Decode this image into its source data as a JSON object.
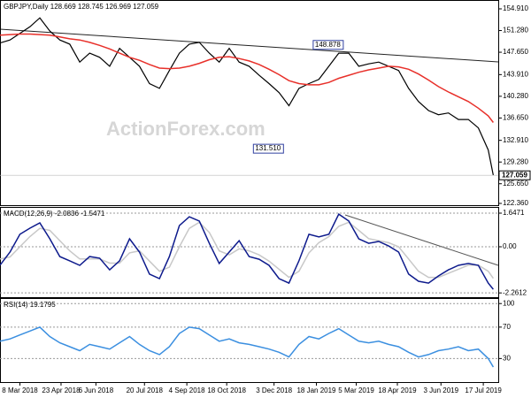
{
  "chart_data": [
    {
      "type": "line",
      "title": "GBPJPY,Daily  128.669 128.745 126.969 127.059",
      "watermark": "ActionForex.com",
      "x": [
        0,
        8,
        16,
        24,
        32,
        40,
        48,
        56,
        64,
        72,
        80,
        88,
        96,
        104,
        112,
        120,
        128,
        136,
        144,
        152,
        160,
        168,
        176,
        184,
        192,
        200,
        208,
        216,
        224,
        232,
        240,
        248,
        256,
        264,
        272,
        280,
        288,
        296,
        304,
        312,
        320,
        328,
        336,
        344,
        352,
        360,
        368,
        376,
        384,
        392,
        396
      ],
      "xlim": [
        0,
        400
      ],
      "ylim": [
        122.06,
        156.39
      ],
      "yticks": [
        {
          "value": 154.91,
          "label": "154.910"
        },
        {
          "value": 151.28,
          "label": "151.280"
        },
        {
          "value": 147.65,
          "label": "147.650"
        },
        {
          "value": 143.91,
          "label": "143.910"
        },
        {
          "value": 140.28,
          "label": "140.280"
        },
        {
          "value": 136.65,
          "label": "136.650"
        },
        {
          "value": 132.91,
          "label": "132.910"
        },
        {
          "value": 129.28,
          "label": "129.280"
        },
        {
          "value": 125.65,
          "label": "125.650"
        },
        {
          "value": 122.36,
          "label": "122.360"
        }
      ],
      "grid": false,
      "series": [
        {
          "color": "#000000",
          "values": [
            149.2,
            149.7,
            150.8,
            151.9,
            153.4,
            151.2,
            149.7,
            149.0,
            146.0,
            147.5,
            146.8,
            145.3,
            148.3,
            146.8,
            145.3,
            142.4,
            141.6,
            144.6,
            147.5,
            149.0,
            149.3,
            147.5,
            146.0,
            148.3,
            146.0,
            145.3,
            143.8,
            142.4,
            140.9,
            138.7,
            141.6,
            142.4,
            143.1,
            145.3,
            147.5,
            147.5,
            145.3,
            145.7,
            146.0,
            145.3,
            144.6,
            141.6,
            139.4,
            137.9,
            137.2,
            137.5,
            136.4,
            136.4,
            135.0,
            131.3,
            127.059
          ]
        },
        {
          "color": "#e8302a",
          "values": [
            150.5,
            150.6,
            150.7,
            150.7,
            150.6,
            150.5,
            150.2,
            149.9,
            149.7,
            149.3,
            148.8,
            148.2,
            147.5,
            146.8,
            146.3,
            145.6,
            145.0,
            144.9,
            145.0,
            145.3,
            145.8,
            146.4,
            146.8,
            146.9,
            146.6,
            146.2,
            145.6,
            144.8,
            143.9,
            142.9,
            142.4,
            142.2,
            142.2,
            142.6,
            143.3,
            143.8,
            144.3,
            144.7,
            145.0,
            145.3,
            145.2,
            144.8,
            144.0,
            143.0,
            141.9,
            141.0,
            140.2,
            139.4,
            138.3,
            137.0,
            135.9
          ]
        }
      ],
      "annotations": [
        {
          "x": 277,
          "value": 148.878,
          "label": "148.878"
        },
        {
          "x": 229,
          "value": 131.51,
          "label": "131.510"
        }
      ],
      "price_label": {
        "value": 127.059,
        "label": "127.059"
      }
    },
    {
      "type": "line",
      "title": "MACD(12,26,9) -2.0836 -1.5471",
      "x": [
        0,
        8,
        16,
        24,
        32,
        40,
        48,
        56,
        64,
        72,
        80,
        88,
        96,
        104,
        112,
        120,
        128,
        136,
        144,
        152,
        160,
        168,
        176,
        184,
        192,
        200,
        208,
        216,
        224,
        232,
        240,
        248,
        256,
        264,
        272,
        280,
        288,
        296,
        304,
        312,
        320,
        328,
        336,
        344,
        352,
        360,
        368,
        376,
        384,
        392,
        396
      ],
      "xlim": [
        0,
        400
      ],
      "ylim": [
        -2.47,
        1.95
      ],
      "yticks": [
        1.6471,
        {
          "value": 0,
          "label": "0.00"
        },
        -2.2612
      ],
      "grid": true,
      "series": [
        {
          "color": "#c8c8c8",
          "values": [
            -0.6,
            -0.5,
            0.0,
            0.5,
            0.9,
            0.8,
            0.3,
            -0.2,
            -0.6,
            -0.6,
            -0.6,
            -0.8,
            -0.8,
            -0.3,
            -0.2,
            -0.7,
            -1.2,
            -1.0,
            0.0,
            0.9,
            1.2,
            0.7,
            -0.2,
            -0.4,
            -0.1,
            -0.2,
            -0.4,
            -0.7,
            -1.1,
            -1.5,
            -1.2,
            -0.3,
            0.2,
            0.5,
            1.0,
            1.2,
            0.8,
            0.4,
            0.3,
            0.2,
            0.0,
            -0.6,
            -1.2,
            -1.5,
            -1.5,
            -1.3,
            -1.1,
            -0.9,
            -0.9,
            -1.2,
            -1.5471
          ]
        },
        {
          "color": "#0d1a8c",
          "values": [
            -0.9,
            -0.26,
            0.61,
            0.91,
            1.17,
            0.39,
            -0.48,
            -0.69,
            -0.91,
            -0.48,
            -0.56,
            -1.13,
            -0.69,
            0.39,
            -0.26,
            -1.34,
            -1.56,
            -0.48,
            1.04,
            1.47,
            1.26,
            0.17,
            -0.82,
            -0.26,
            0.3,
            -0.48,
            -0.61,
            -0.91,
            -1.56,
            -1.78,
            -0.69,
            0.61,
            0.48,
            0.61,
            1.6,
            1.26,
            0.39,
            0.17,
            0.26,
            0.04,
            -0.26,
            -1.34,
            -1.69,
            -1.78,
            -1.43,
            -1.13,
            -0.91,
            -0.82,
            -0.91,
            -1.78,
            -2.0836
          ]
        }
      ]
    },
    {
      "type": "line",
      "title": "RSI(14) 19.1795",
      "x": [
        0,
        8,
        16,
        24,
        32,
        40,
        48,
        56,
        64,
        72,
        80,
        88,
        96,
        104,
        112,
        120,
        128,
        136,
        144,
        152,
        160,
        168,
        176,
        184,
        192,
        200,
        208,
        216,
        224,
        232,
        240,
        248,
        256,
        264,
        272,
        280,
        288,
        296,
        304,
        312,
        320,
        328,
        336,
        344,
        352,
        360,
        368,
        376,
        384,
        392,
        396
      ],
      "xlim": [
        0,
        400
      ],
      "ylim": [
        0,
        107
      ],
      "yticks": [
        100,
        70,
        30
      ],
      "grid": true,
      "series": [
        {
          "color": "#3b8fe0",
          "values": [
            52,
            55,
            60,
            65,
            70,
            58,
            50,
            45,
            40,
            48,
            45,
            42,
            50,
            58,
            48,
            40,
            35,
            45,
            62,
            70,
            68,
            60,
            52,
            55,
            50,
            48,
            45,
            42,
            38,
            32,
            48,
            58,
            55,
            62,
            68,
            60,
            52,
            50,
            52,
            48,
            45,
            38,
            32,
            35,
            40,
            42,
            45,
            40,
            42,
            30,
            19.1795
          ]
        }
      ],
      "xticks": [
        {
          "value": 16,
          "label": "8 Mar 2018"
        },
        {
          "value": 49,
          "label": "23 Apr 2018"
        },
        {
          "value": 77,
          "label": "6 Jun 2018"
        },
        {
          "value": 116,
          "label": "20 Jul 2018"
        },
        {
          "value": 150,
          "label": "4 Sep 2018"
        },
        {
          "value": 182,
          "label": "18 Oct 2018"
        },
        {
          "value": 220,
          "label": "3 Dec 2018"
        },
        {
          "value": 254,
          "label": "18 Jan 2019"
        },
        {
          "value": 286,
          "label": "5 Mar 2019"
        },
        {
          "value": 319,
          "label": "18 Apr 2019"
        },
        {
          "value": 354,
          "label": "3 Jun 2019"
        },
        {
          "value": 388,
          "label": "17 Jul 2019"
        }
      ]
    }
  ]
}
